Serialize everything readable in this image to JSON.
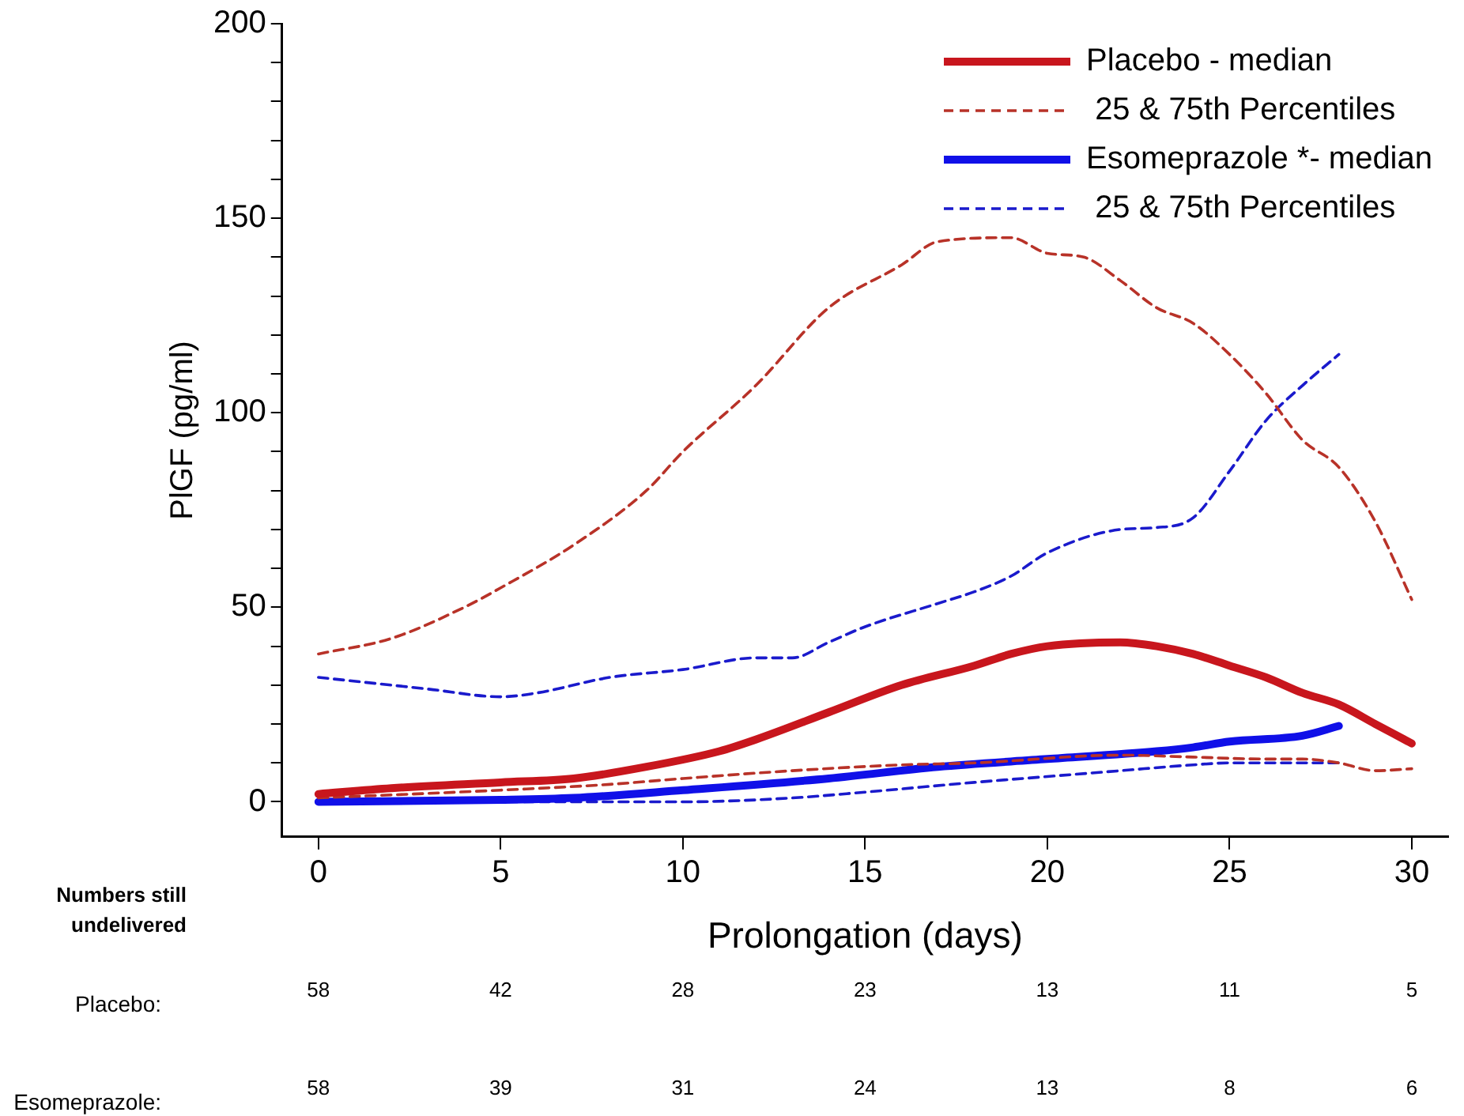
{
  "chart_data": {
    "type": "line",
    "xlabel": "Prolongation (days)",
    "ylabel": "PlGF (pg/ml)",
    "xlim": [
      -1,
      31
    ],
    "xticks": [
      0,
      5,
      10,
      15,
      20,
      25,
      30
    ],
    "ylim": [
      -9,
      200
    ],
    "yticks": [
      0,
      {
        "value": 10,
        "label": null
      },
      {
        "value": 20,
        "label": null
      },
      {
        "value": 30,
        "label": null
      },
      {
        "value": 40,
        "label": null
      },
      50,
      {
        "value": 60,
        "label": null
      },
      {
        "value": 70,
        "label": null
      },
      {
        "value": 80,
        "label": null
      },
      {
        "value": 90,
        "label": null
      },
      100,
      {
        "value": 110,
        "label": null
      },
      {
        "value": 120,
        "label": null
      },
      {
        "value": 130,
        "label": null
      },
      {
        "value": 140,
        "label": null
      },
      150,
      {
        "value": 160,
        "label": null
      },
      {
        "value": 170,
        "label": null
      },
      {
        "value": 180,
        "label": null
      },
      {
        "value": 190,
        "label": null
      },
      200
    ],
    "grid": false,
    "legend": "top right",
    "marker": "none",
    "series": [
      {
        "name": "Placebo - median",
        "color": "#c8161d",
        "line_style": "solid",
        "x": [
          0,
          2,
          5,
          7,
          9,
          11,
          12,
          14,
          16,
          18,
          19,
          20,
          22,
          23,
          24,
          25,
          26,
          27,
          28,
          29,
          30
        ],
        "values": [
          2,
          3.5,
          5,
          6,
          9,
          13,
          16,
          23,
          30,
          35,
          38,
          40,
          41,
          40,
          38,
          35,
          32,
          28,
          25,
          20,
          15
        ]
      },
      {
        "name": " 25 & 75th Percentiles",
        "color": "#b83228",
        "line_style": "dashed",
        "x": [
          0,
          5,
          8,
          10,
          13,
          16,
          18,
          22,
          24,
          26,
          27,
          28,
          29,
          30
        ],
        "values": [
          1,
          3,
          4.5,
          6,
          8,
          9.5,
          10,
          12,
          11.5,
          11,
          11,
          10,
          8,
          8.5
        ]
      },
      {
        "color": "#b83228",
        "line_style": "dashed",
        "x": [
          0,
          2,
          4,
          5,
          7,
          9,
          10,
          12,
          14,
          16,
          17,
          19,
          20,
          21,
          22,
          23,
          24,
          25,
          26,
          27,
          28,
          29,
          30
        ],
        "values": [
          38,
          42,
          50,
          55,
          66,
          80,
          90,
          107,
          127,
          138,
          144,
          145,
          141,
          140,
          134,
          127,
          123,
          115,
          105,
          93,
          86,
          72,
          52
        ]
      },
      {
        "name": "Esomeprazole *- median",
        "color": "#1010e8",
        "line_style": "solid",
        "x": [
          0,
          5,
          7,
          10,
          14,
          17,
          20,
          23,
          24,
          25,
          27,
          28
        ],
        "values": [
          0,
          0.5,
          1,
          3,
          6,
          9,
          11,
          13,
          14,
          15.5,
          17,
          19.5
        ]
      },
      {
        "name": " 25 & 75th Percentiles",
        "color": "#1a1acc",
        "line_style": "dashed",
        "x": [
          0,
          7,
          10,
          13,
          15,
          18,
          20,
          22,
          24,
          25,
          26,
          28
        ],
        "values": [
          0,
          0,
          0,
          1,
          2.5,
          5,
          6.5,
          8,
          9.5,
          10,
          10,
          10
        ]
      },
      {
        "color": "#1a1acc",
        "line_style": "dashed",
        "x": [
          0,
          3,
          5,
          6,
          8,
          10,
          12,
          13,
          14,
          15,
          17,
          18,
          19,
          20,
          22,
          23,
          24,
          25,
          26,
          27,
          28
        ],
        "values": [
          32,
          29,
          27,
          28,
          32,
          34,
          37,
          37,
          41,
          45,
          51,
          54,
          58,
          64,
          70,
          70.5,
          73,
          85,
          98,
          107,
          115
        ]
      }
    ],
    "annotations": [
      "Numbers still undelivered",
      "Placebo:",
      "58",
      "42",
      "28",
      "23",
      "13",
      "11",
      "5",
      "Esomeprazole:",
      "58",
      "39",
      "31",
      "24",
      "13",
      "8",
      "6"
    ]
  }
}
